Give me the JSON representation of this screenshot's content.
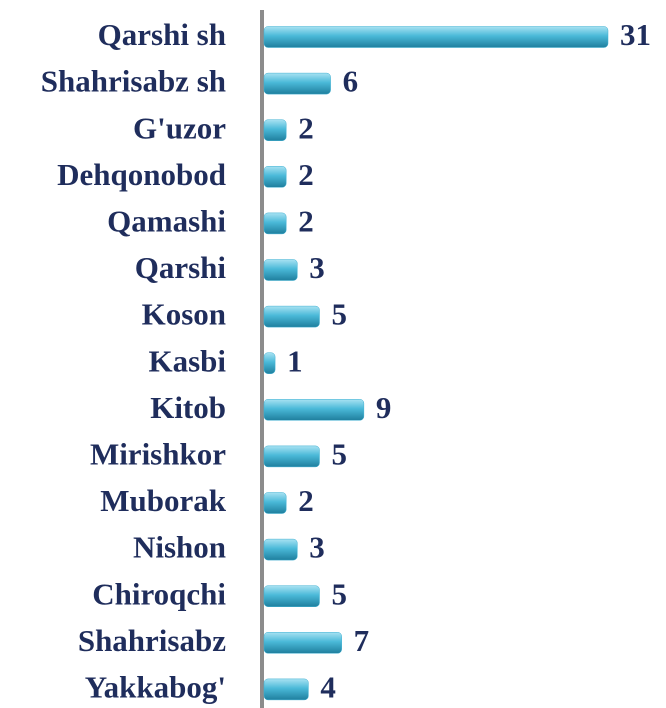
{
  "chart_data": {
    "type": "bar",
    "orientation": "horizontal",
    "categories": [
      "Qarshi sh",
      "Shahrisabz sh",
      "G'uzor",
      "Dehqonobod",
      "Qamashi",
      "Qarshi",
      "Koson",
      "Kasbi",
      "Kitob",
      "Mirishkor",
      "Muborak",
      "Nishon",
      "Chiroqchi",
      "Shahrisabz",
      "Yakkabog'"
    ],
    "values": [
      31,
      6,
      2,
      2,
      2,
      3,
      5,
      1,
      9,
      5,
      2,
      3,
      5,
      7,
      4
    ],
    "color": "#3fb0d2"
  }
}
